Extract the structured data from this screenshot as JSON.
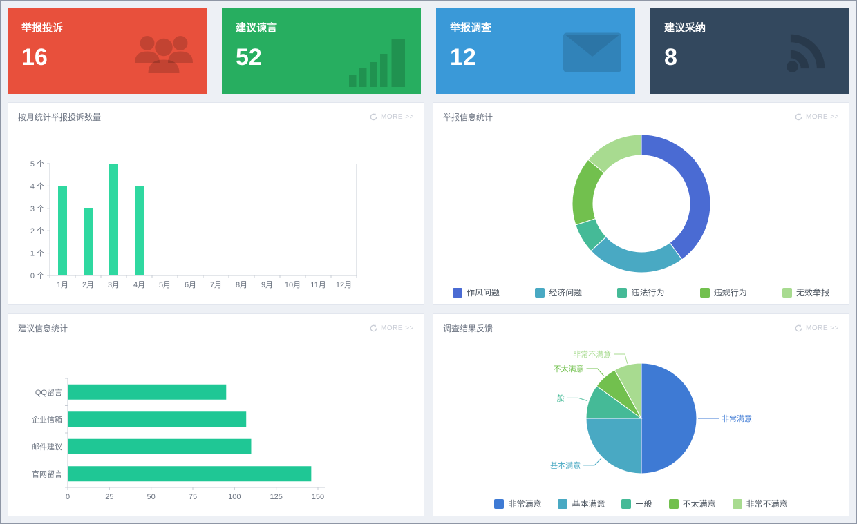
{
  "ui": {
    "more_label": "MORE >>"
  },
  "cards": [
    {
      "title": "举报投诉",
      "value": "16",
      "color": "#e8503c",
      "icon": "users-icon"
    },
    {
      "title": "建议谏言",
      "value": "52",
      "color": "#27ae60",
      "icon": "bar-chart-icon"
    },
    {
      "title": "举报调查",
      "value": "12",
      "color": "#3a99d8",
      "icon": "envelope-icon"
    },
    {
      "title": "建议采纳",
      "value": "8",
      "color": "#33485e",
      "icon": "rss-icon"
    }
  ],
  "chart_data": [
    {
      "type": "bar",
      "orientation": "vertical",
      "title": "按月统计举报投诉数量",
      "categories": [
        "1月",
        "2月",
        "3月",
        "4月",
        "5月",
        "6月",
        "7月",
        "8月",
        "9月",
        "10月",
        "11月",
        "12月"
      ],
      "values": [
        4,
        3,
        5,
        4,
        0,
        0,
        0,
        0,
        0,
        0,
        0,
        0
      ],
      "ylim": [
        0,
        5
      ],
      "y_ticks": [
        0,
        1,
        2,
        3,
        4,
        5
      ],
      "y_unit": "个",
      "bar_color": "#2fd8a0",
      "grid": false,
      "legend_position": "none"
    },
    {
      "type": "pie",
      "variant": "donut",
      "title": "举报信息统计",
      "labels": [
        "作风问题",
        "经济问题",
        "违法行为",
        "违规行为",
        "无效举报"
      ],
      "values": [
        40,
        23,
        7,
        16,
        14
      ],
      "colors": [
        "#4a6bd3",
        "#49a9c3",
        "#45ba97",
        "#72c04e",
        "#a8db90"
      ],
      "legend_position": "bottom"
    },
    {
      "type": "bar",
      "orientation": "horizontal",
      "title": "建议信息统计",
      "categories": [
        "QQ留言",
        "企业信箱",
        "邮件建议",
        "官网留言"
      ],
      "values": [
        95,
        107,
        110,
        146
      ],
      "xlim": [
        0,
        150
      ],
      "x_ticks": [
        0,
        25,
        50,
        75,
        100,
        125,
        150
      ],
      "bar_color": "#1fc795",
      "grid": false,
      "legend_position": "none"
    },
    {
      "type": "pie",
      "variant": "pie",
      "title": "调查结果反馈",
      "labels": [
        "非常满意",
        "基本满意",
        "一般",
        "不太满意",
        "非常不满意"
      ],
      "values": [
        50,
        25,
        10,
        7,
        8
      ],
      "colors": [
        "#3e7ad4",
        "#49a9c3",
        "#45ba97",
        "#72c04e",
        "#a8db90"
      ],
      "legend_position": "bottom",
      "callouts": true
    }
  ]
}
